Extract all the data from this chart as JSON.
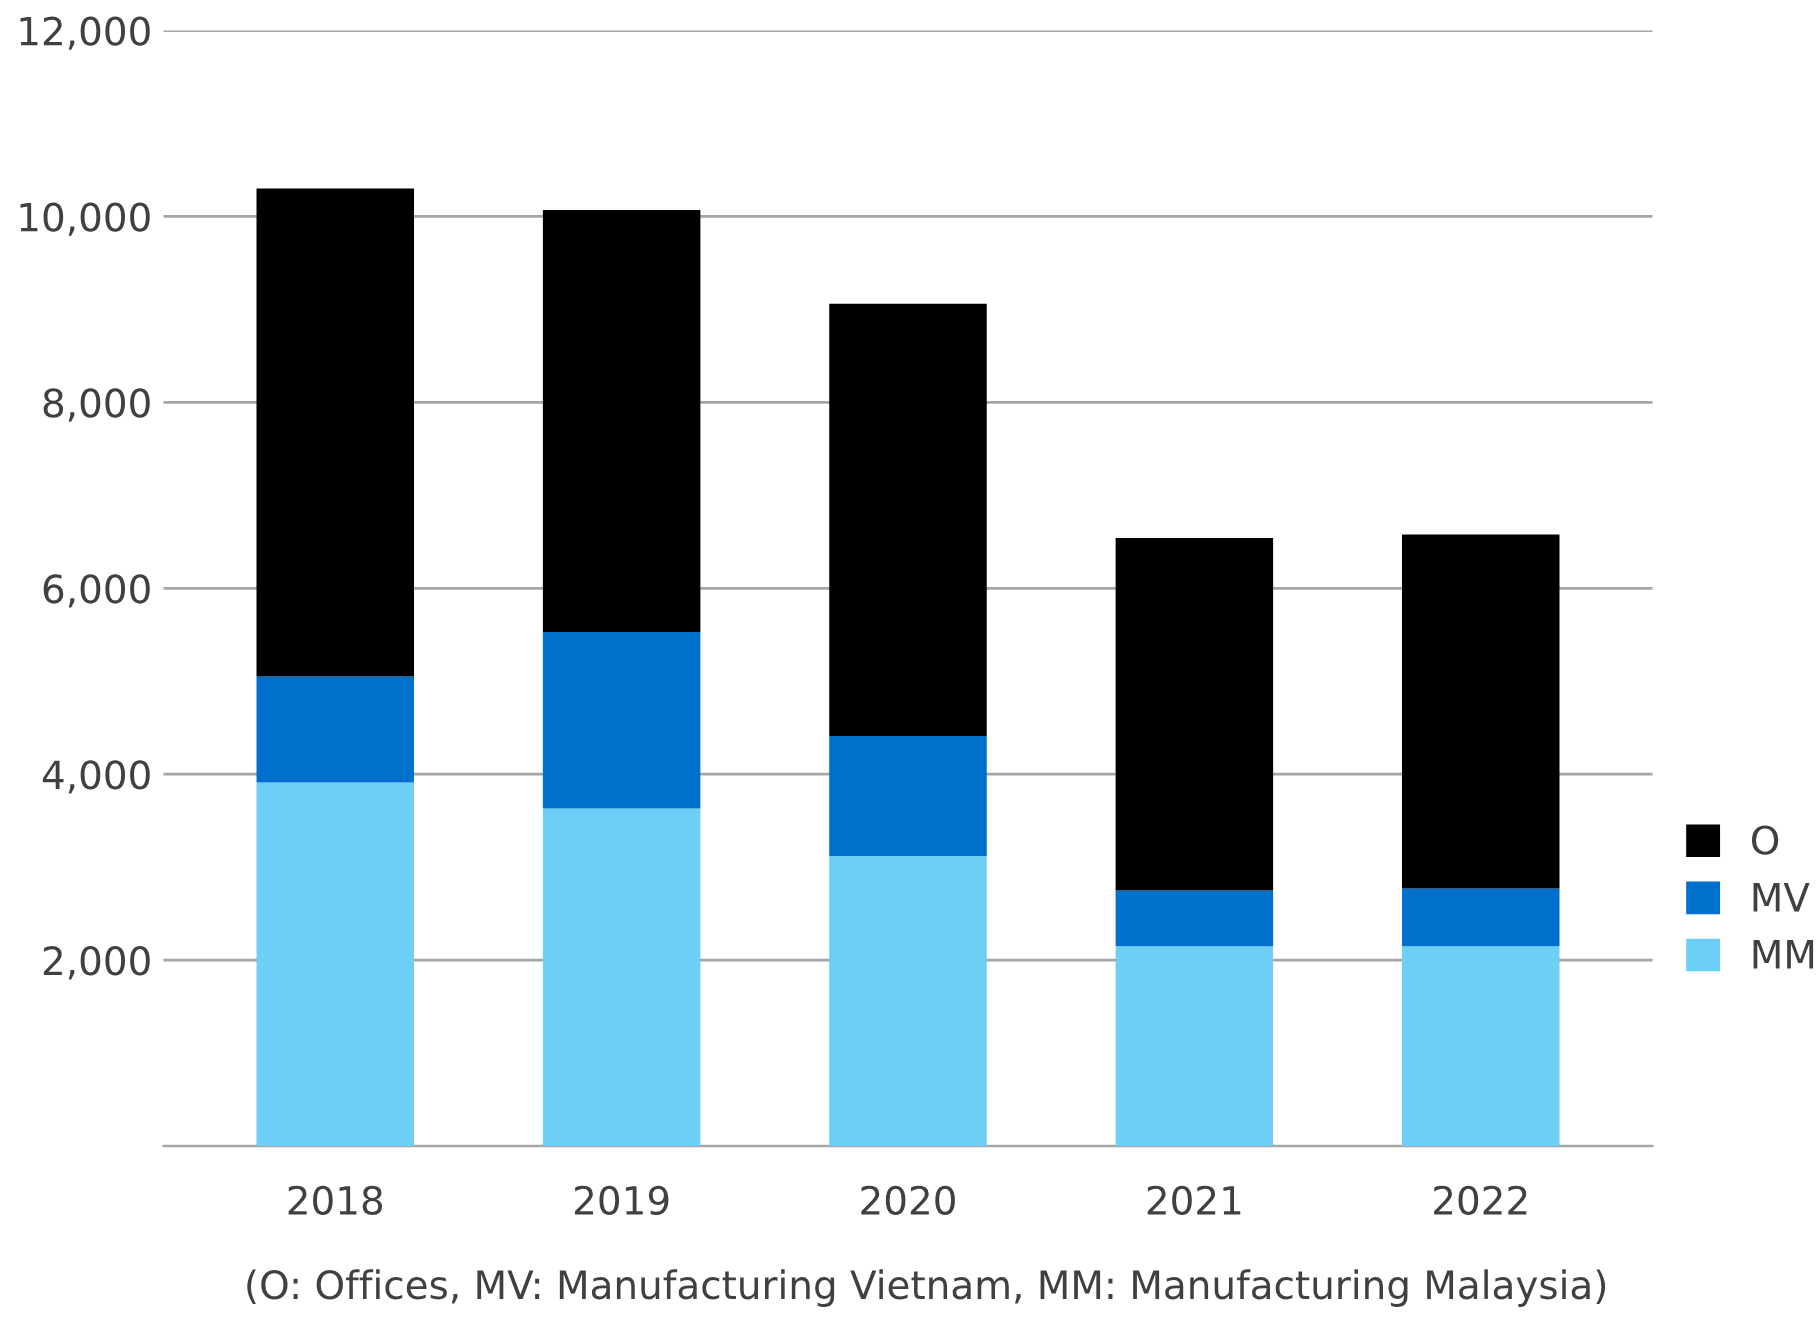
{
  "chart_data": {
    "type": "bar",
    "stacked": true,
    "categories": [
      "2018",
      "2019",
      "2020",
      "2021",
      "2022"
    ],
    "series": [
      {
        "name": "MM",
        "color": "#6dcff6",
        "values": [
          3910,
          3630,
          3120,
          2150,
          2150
        ]
      },
      {
        "name": "MV",
        "color": "#0070cd",
        "values": [
          1140,
          1900,
          1290,
          600,
          620
        ]
      },
      {
        "name": "O",
        "color": "#000000",
        "values": [
          5250,
          4540,
          4650,
          3790,
          3810
        ]
      }
    ],
    "ylim": [
      0,
      12000
    ],
    "yticks": [
      {
        "value": 0,
        "label": null
      },
      {
        "value": 2000,
        "label": "2,000"
      },
      {
        "value": 4000,
        "label": "4,000"
      },
      {
        "value": 6000,
        "label": "6,000"
      },
      {
        "value": 8000,
        "label": "8,000"
      },
      {
        "value": 10000,
        "label": "10,000"
      },
      {
        "value": 12000,
        "label": "12,000"
      }
    ],
    "grid": "y",
    "legend": "right",
    "annotations": [
      "(O: Offices, MV: Manufacturing Vietnam, MM: Manufacturing Malaysia)"
    ]
  }
}
